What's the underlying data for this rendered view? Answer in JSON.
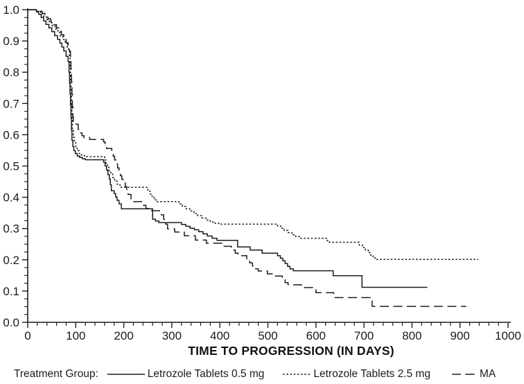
{
  "legend": {
    "prefix": "Treatment Group:",
    "items": [
      {
        "label": "Letrozole Tablets 0.5 mg",
        "style": "solid"
      },
      {
        "label": "Letrozole Tablets 2.5 mg",
        "style": "dotted"
      },
      {
        "label": "MA",
        "style": "dashed"
      }
    ]
  },
  "chart_data": {
    "type": "line",
    "subtype": "kaplan-meier-step",
    "title": "",
    "xlabel": "TIME TO PROGRESSION (IN DAYS)",
    "ylabel": "",
    "xlim": [
      0,
      1000
    ],
    "ylim": [
      0,
      1.0
    ],
    "x_major_ticks": [
      0,
      100,
      200,
      300,
      400,
      500,
      600,
      700,
      800,
      900,
      1000
    ],
    "x_minor_step": 20,
    "y_major_ticks": [
      0.0,
      0.1,
      0.2,
      0.3,
      0.4,
      0.5,
      0.6,
      0.7,
      0.8,
      0.9,
      1.0
    ],
    "y_minor_step": 0.025,
    "grid": false,
    "legend_position": "bottom",
    "colors": {
      "line": "#1b1b1b",
      "text": "#1b1b1b",
      "background": "#ffffff"
    },
    "series": [
      {
        "name": "Letrozole Tablets 0.5 mg",
        "style": "solid",
        "points": [
          [
            0,
            1
          ],
          [
            18,
            0.993
          ],
          [
            23,
            0.985
          ],
          [
            28,
            0.975
          ],
          [
            33,
            0.964
          ],
          [
            38,
            0.953
          ],
          [
            44,
            0.942
          ],
          [
            50,
            0.93
          ],
          [
            56,
            0.917
          ],
          [
            62,
            0.905
          ],
          [
            67,
            0.893
          ],
          [
            71,
            0.881
          ],
          [
            75,
            0.868
          ],
          [
            80,
            0.851
          ],
          [
            84,
            0.834
          ],
          [
            86,
            0.8
          ],
          [
            87,
            0.765
          ],
          [
            88,
            0.73
          ],
          [
            89,
            0.695
          ],
          [
            90,
            0.655
          ],
          [
            91,
            0.615
          ],
          [
            92,
            0.582
          ],
          [
            94,
            0.562
          ],
          [
            96,
            0.549
          ],
          [
            99,
            0.54
          ],
          [
            103,
            0.532
          ],
          [
            108,
            0.527
          ],
          [
            114,
            0.523
          ],
          [
            120,
            0.52
          ],
          [
            158,
            0.512
          ],
          [
            161,
            0.5
          ],
          [
            164,
            0.487
          ],
          [
            167,
            0.472
          ],
          [
            170,
            0.458
          ],
          [
            172,
            0.44
          ],
          [
            174,
            0.421
          ],
          [
            180,
            0.412
          ],
          [
            183,
            0.401
          ],
          [
            186,
            0.39
          ],
          [
            190,
            0.379
          ],
          [
            195,
            0.363
          ],
          [
            260,
            0.33
          ],
          [
            266,
            0.324
          ],
          [
            273,
            0.319
          ],
          [
            320,
            0.313
          ],
          [
            329,
            0.307
          ],
          [
            338,
            0.301
          ],
          [
            347,
            0.296
          ],
          [
            356,
            0.29
          ],
          [
            365,
            0.283
          ],
          [
            374,
            0.276
          ],
          [
            384,
            0.269
          ],
          [
            394,
            0.262
          ],
          [
            437,
            0.241
          ],
          [
            463,
            0.231
          ],
          [
            488,
            0.221
          ],
          [
            520,
            0.213
          ],
          [
            526,
            0.205
          ],
          [
            531,
            0.197
          ],
          [
            536,
            0.188
          ],
          [
            541,
            0.179
          ],
          [
            546,
            0.171
          ],
          [
            553,
            0.165
          ],
          [
            636,
            0.149
          ],
          [
            696,
            0.112
          ],
          [
            832,
            0.112
          ]
        ]
      },
      {
        "name": "Letrozole Tablets 2.5 mg",
        "style": "dotted",
        "points": [
          [
            0,
            1
          ],
          [
            21,
            0.995
          ],
          [
            27,
            0.987
          ],
          [
            33,
            0.978
          ],
          [
            39,
            0.968
          ],
          [
            45,
            0.958
          ],
          [
            51,
            0.948
          ],
          [
            57,
            0.938
          ],
          [
            63,
            0.927
          ],
          [
            68,
            0.916
          ],
          [
            73,
            0.905
          ],
          [
            78,
            0.893
          ],
          [
            82,
            0.88
          ],
          [
            85,
            0.867
          ],
          [
            87,
            0.853
          ],
          [
            88,
            0.815
          ],
          [
            89,
            0.775
          ],
          [
            90,
            0.735
          ],
          [
            91,
            0.695
          ],
          [
            92,
            0.655
          ],
          [
            93,
            0.62
          ],
          [
            95,
            0.592
          ],
          [
            97,
            0.575
          ],
          [
            100,
            0.562
          ],
          [
            103,
            0.549
          ],
          [
            107,
            0.54
          ],
          [
            112,
            0.534
          ],
          [
            118,
            0.53
          ],
          [
            160,
            0.519
          ],
          [
            163,
            0.507
          ],
          [
            166,
            0.496
          ],
          [
            169,
            0.485
          ],
          [
            173,
            0.474
          ],
          [
            177,
            0.463
          ],
          [
            181,
            0.452
          ],
          [
            186,
            0.442
          ],
          [
            192,
            0.432
          ],
          [
            250,
            0.42
          ],
          [
            255,
            0.41
          ],
          [
            259,
            0.4
          ],
          [
            263,
            0.392
          ],
          [
            267,
            0.386
          ],
          [
            315,
            0.379
          ],
          [
            322,
            0.371
          ],
          [
            330,
            0.363
          ],
          [
            338,
            0.356
          ],
          [
            346,
            0.348
          ],
          [
            354,
            0.341
          ],
          [
            362,
            0.334
          ],
          [
            371,
            0.327
          ],
          [
            380,
            0.321
          ],
          [
            390,
            0.317
          ],
          [
            398,
            0.314
          ],
          [
            520,
            0.308
          ],
          [
            527,
            0.301
          ],
          [
            534,
            0.294
          ],
          [
            542,
            0.287
          ],
          [
            550,
            0.28
          ],
          [
            558,
            0.274
          ],
          [
            566,
            0.269
          ],
          [
            622,
            0.261
          ],
          [
            628,
            0.256
          ],
          [
            690,
            0.247
          ],
          [
            697,
            0.239
          ],
          [
            703,
            0.231
          ],
          [
            709,
            0.223
          ],
          [
            714,
            0.215
          ],
          [
            719,
            0.207
          ],
          [
            723,
            0.201
          ],
          [
            938,
            0.201
          ]
        ]
      },
      {
        "name": "MA",
        "style": "dashed",
        "points": [
          [
            0,
            1
          ],
          [
            24,
            0.995
          ],
          [
            30,
            0.988
          ],
          [
            36,
            0.98
          ],
          [
            42,
            0.971
          ],
          [
            48,
            0.962
          ],
          [
            54,
            0.952
          ],
          [
            60,
            0.942
          ],
          [
            65,
            0.931
          ],
          [
            70,
            0.92
          ],
          [
            75,
            0.908
          ],
          [
            80,
            0.894
          ],
          [
            84,
            0.881
          ],
          [
            87,
            0.867
          ],
          [
            89,
            0.845
          ],
          [
            90,
            0.81
          ],
          [
            91,
            0.77
          ],
          [
            92,
            0.73
          ],
          [
            93,
            0.69
          ],
          [
            94,
            0.658
          ],
          [
            95,
            0.634
          ],
          [
            105,
            0.617
          ],
          [
            109,
            0.606
          ],
          [
            113,
            0.597
          ],
          [
            117,
            0.591
          ],
          [
            129,
            0.585
          ],
          [
            158,
            0.577
          ],
          [
            161,
            0.567
          ],
          [
            164,
            0.556
          ],
          [
            175,
            0.544
          ],
          [
            178,
            0.531
          ],
          [
            181,
            0.519
          ],
          [
            184,
            0.507
          ],
          [
            187,
            0.494
          ],
          [
            190,
            0.482
          ],
          [
            193,
            0.469
          ],
          [
            196,
            0.457
          ],
          [
            200,
            0.447
          ],
          [
            203,
            0.434
          ],
          [
            206,
            0.421
          ],
          [
            209,
            0.409
          ],
          [
            215,
            0.386
          ],
          [
            237,
            0.374
          ],
          [
            246,
            0.364
          ],
          [
            258,
            0.357
          ],
          [
            278,
            0.344
          ],
          [
            283,
            0.329
          ],
          [
            287,
            0.314
          ],
          [
            291,
            0.299
          ],
          [
            306,
            0.289
          ],
          [
            326,
            0.277
          ],
          [
            349,
            0.263
          ],
          [
            372,
            0.253
          ],
          [
            404,
            0.243
          ],
          [
            424,
            0.231
          ],
          [
            432,
            0.221
          ],
          [
            438,
            0.213
          ],
          [
            456,
            0.201
          ],
          [
            462,
            0.19
          ],
          [
            468,
            0.18
          ],
          [
            474,
            0.171
          ],
          [
            480,
            0.164
          ],
          [
            499,
            0.155
          ],
          [
            509,
            0.148
          ],
          [
            530,
            0.136
          ],
          [
            536,
            0.127
          ],
          [
            542,
            0.12
          ],
          [
            570,
            0.111
          ],
          [
            600,
            0.095
          ],
          [
            637,
            0.079
          ],
          [
            717,
            0.051
          ],
          [
            913,
            0.051
          ]
        ]
      }
    ]
  }
}
